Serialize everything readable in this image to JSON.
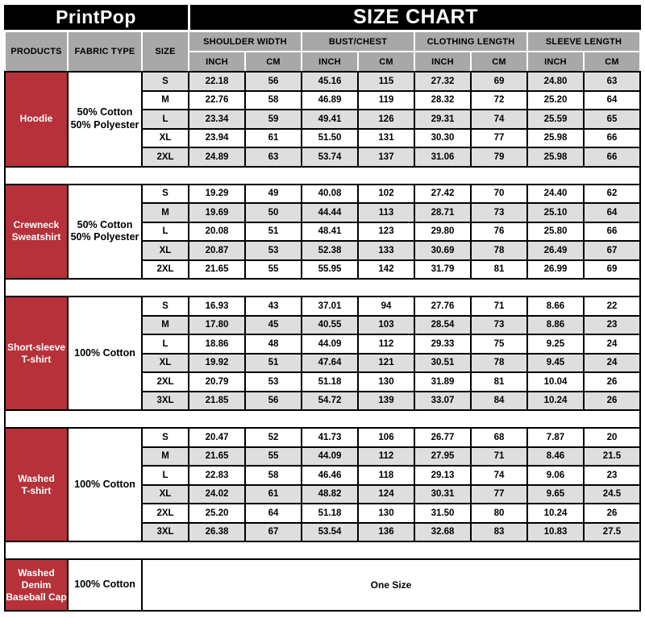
{
  "brand": "PrintPop",
  "title": "SIZE CHART",
  "colors": {
    "accent_red": "#b63139",
    "header_gray": "#a8a8a8",
    "row_stripe_gray": "#dedede",
    "band_black": "#000000"
  },
  "columns": {
    "products": "PRODUCTS",
    "fabric": "FABRIC TYPE",
    "size": "SIZE",
    "groups": [
      {
        "label": "SHOULDER WIDTH",
        "units": [
          "INCH",
          "CM"
        ]
      },
      {
        "label": "BUST/CHEST",
        "units": [
          "INCH",
          "CM"
        ]
      },
      {
        "label": "CLOTHING LENGTH",
        "units": [
          "INCH",
          "CM"
        ]
      },
      {
        "label": "SLEEVE LENGTH",
        "units": [
          "INCH",
          "CM"
        ]
      }
    ]
  },
  "sections": [
    {
      "product_lines": [
        "Hoodie"
      ],
      "fabric_lines": [
        "50% Cotton",
        "50% Polyester"
      ],
      "shade_first": true,
      "rows": [
        {
          "size": "S",
          "values": [
            "22.18",
            "56",
            "45.16",
            "115",
            "27.32",
            "69",
            "24.80",
            "63"
          ]
        },
        {
          "size": "M",
          "values": [
            "22.76",
            "58",
            "46.89",
            "119",
            "28.32",
            "72",
            "25.20",
            "64"
          ]
        },
        {
          "size": "L",
          "values": [
            "23.34",
            "59",
            "49.41",
            "126",
            "29.31",
            "74",
            "25.59",
            "65"
          ]
        },
        {
          "size": "XL",
          "values": [
            "23.94",
            "61",
            "51.50",
            "131",
            "30.30",
            "77",
            "25.98",
            "66"
          ]
        },
        {
          "size": "2XL",
          "values": [
            "24.89",
            "63",
            "53.74",
            "137",
            "31.06",
            "79",
            "25.98",
            "66"
          ]
        }
      ]
    },
    {
      "product_lines": [
        "Crewneck",
        "Sweatshirt"
      ],
      "fabric_lines": [
        "50% Cotton",
        "50% Polyester"
      ],
      "shade_first": false,
      "rows": [
        {
          "size": "S",
          "values": [
            "19.29",
            "49",
            "40.08",
            "102",
            "27.42",
            "70",
            "24.40",
            "62"
          ]
        },
        {
          "size": "M",
          "values": [
            "19.69",
            "50",
            "44.44",
            "113",
            "28.71",
            "73",
            "25.10",
            "64"
          ]
        },
        {
          "size": "L",
          "values": [
            "20.08",
            "51",
            "48.41",
            "123",
            "29.80",
            "76",
            "25.80",
            "66"
          ]
        },
        {
          "size": "XL",
          "values": [
            "20.87",
            "53",
            "52.38",
            "133",
            "30.69",
            "78",
            "26.49",
            "67"
          ]
        },
        {
          "size": "2XL",
          "values": [
            "21.65",
            "55",
            "55.95",
            "142",
            "31.79",
            "81",
            "26.99",
            "69"
          ]
        }
      ]
    },
    {
      "product_lines": [
        "Short-sleeve",
        "T-shirt"
      ],
      "fabric_lines": [
        "100% Cotton"
      ],
      "shade_first": false,
      "rows": [
        {
          "size": "S",
          "values": [
            "16.93",
            "43",
            "37.01",
            "94",
            "27.76",
            "71",
            "8.66",
            "22"
          ]
        },
        {
          "size": "M",
          "values": [
            "17.80",
            "45",
            "40.55",
            "103",
            "28.54",
            "73",
            "8.86",
            "23"
          ]
        },
        {
          "size": "L",
          "values": [
            "18.86",
            "48",
            "44.09",
            "112",
            "29.33",
            "75",
            "9.25",
            "24"
          ]
        },
        {
          "size": "XL",
          "values": [
            "19.92",
            "51",
            "47.64",
            "121",
            "30.51",
            "78",
            "9.45",
            "24"
          ]
        },
        {
          "size": "2XL",
          "values": [
            "20.79",
            "53",
            "51.18",
            "130",
            "31.89",
            "81",
            "10.04",
            "26"
          ]
        },
        {
          "size": "3XL",
          "values": [
            "21.85",
            "56",
            "54.72",
            "139",
            "33.07",
            "84",
            "10.24",
            "26"
          ]
        }
      ]
    },
    {
      "product_lines": [
        "Washed",
        "T-shirt"
      ],
      "fabric_lines": [
        "100% Cotton"
      ],
      "shade_first": false,
      "rows": [
        {
          "size": "S",
          "values": [
            "20.47",
            "52",
            "41.73",
            "106",
            "26.77",
            "68",
            "7.87",
            "20"
          ]
        },
        {
          "size": "M",
          "values": [
            "21.65",
            "55",
            "44.09",
            "112",
            "27.95",
            "71",
            "8.46",
            "21.5"
          ]
        },
        {
          "size": "L",
          "values": [
            "22.83",
            "58",
            "46.46",
            "118",
            "29.13",
            "74",
            "9.06",
            "23"
          ]
        },
        {
          "size": "XL",
          "values": [
            "24.02",
            "61",
            "48.82",
            "124",
            "30.31",
            "77",
            "9.65",
            "24.5"
          ]
        },
        {
          "size": "2XL",
          "values": [
            "25.20",
            "64",
            "51.18",
            "130",
            "31.50",
            "80",
            "10.24",
            "26"
          ]
        },
        {
          "size": "3XL",
          "values": [
            "26.38",
            "67",
            "53.54",
            "136",
            "32.68",
            "83",
            "10.83",
            "27.5"
          ]
        }
      ]
    },
    {
      "product_lines": [
        "Washed Denim",
        "Baseball Cap"
      ],
      "fabric_lines": [
        "100% Cotton"
      ],
      "one_size": "One Size"
    }
  ]
}
